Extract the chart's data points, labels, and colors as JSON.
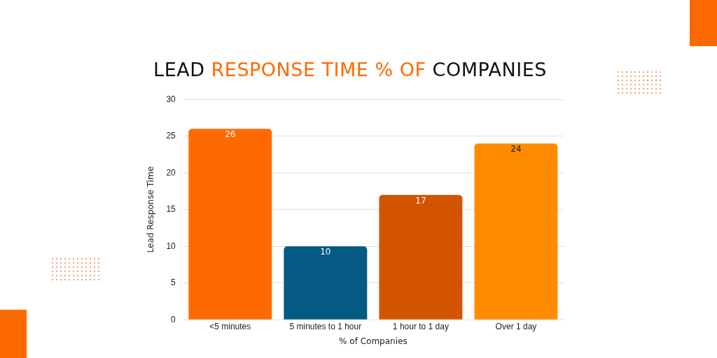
{
  "chart_data": {
    "type": "bar",
    "title": "LEAD RESPONSE TIME % OF COMPANIES",
    "xlabel": "% of Companies",
    "ylabel": "Lead Response Time",
    "categories": [
      "<5 minutes",
      "5 minutes to 1 hour",
      "1 hour to 1 day",
      "Over 1 day"
    ],
    "values": [
      26,
      10,
      17,
      24
    ],
    "colors": [
      "#ff6a00",
      "#045a82",
      "#d35400",
      "#ff8c00"
    ],
    "ylim": [
      0,
      30
    ],
    "yticks": [
      0,
      5,
      10,
      15,
      20,
      25,
      30
    ],
    "grid": "y",
    "data_labels": true
  }
}
